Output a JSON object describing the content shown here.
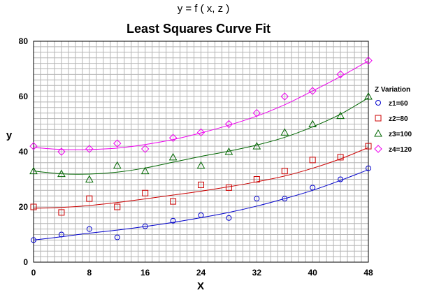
{
  "chart_data": {
    "type": "scatter",
    "suptitle": "y = f ( x, z )",
    "title": "Least Squares Curve Fit",
    "xlabel": "X",
    "ylabel": "y",
    "xlim": [
      0,
      48
    ],
    "ylim": [
      0,
      80
    ],
    "xticks": [
      0,
      8,
      16,
      24,
      32,
      40,
      48
    ],
    "yticks": [
      0,
      20,
      40,
      60,
      80
    ],
    "grid": true,
    "legend": {
      "title": "Z Variation",
      "placement": "right"
    },
    "series": [
      {
        "name": "z1=60",
        "color": "#0000cc",
        "marker": "circle",
        "x": [
          0,
          4,
          8,
          12,
          16,
          20,
          24,
          28,
          32,
          36,
          40,
          44,
          48
        ],
        "y": [
          8,
          10,
          12,
          9,
          13,
          15,
          17,
          16,
          23,
          23,
          27,
          30,
          34
        ],
        "fit": [
          8,
          9.2,
          10.5,
          11.6,
          12.9,
          14.4,
          16.1,
          18,
          20.3,
          23,
          26,
          29.6,
          33.5
        ]
      },
      {
        "name": "z2=80",
        "color": "#cc0000",
        "marker": "square",
        "x": [
          0,
          4,
          8,
          12,
          16,
          20,
          24,
          28,
          32,
          36,
          40,
          44,
          48
        ],
        "y": [
          20,
          18,
          23,
          20,
          25,
          22,
          28,
          27,
          30,
          33,
          37,
          38,
          42
        ],
        "fit": [
          19.5,
          19.8,
          20.5,
          21.6,
          22.9,
          24.3,
          25.7,
          27.3,
          29.1,
          31.2,
          34,
          37.4,
          41.5
        ]
      },
      {
        "name": "z3=100",
        "color": "#006600",
        "marker": "triangle",
        "x": [
          0,
          4,
          8,
          12,
          16,
          20,
          24,
          28,
          32,
          36,
          40,
          44,
          48
        ],
        "y": [
          33,
          32,
          30,
          35,
          33,
          38,
          35,
          40,
          42,
          47,
          50,
          53,
          60
        ],
        "fit": [
          33,
          32,
          31.9,
          32.6,
          34.1,
          36.2,
          38.3,
          40.2,
          42.4,
          45.2,
          49,
          53.6,
          59.5
        ]
      },
      {
        "name": "z4=120",
        "color": "#ee00ee",
        "marker": "diamond",
        "x": [
          0,
          4,
          8,
          12,
          16,
          20,
          24,
          28,
          32,
          36,
          40,
          44,
          48
        ],
        "y": [
          42,
          40,
          41,
          43,
          41,
          45,
          47,
          50,
          54,
          60,
          62,
          68,
          73
        ],
        "fit": [
          41.5,
          40.8,
          40.8,
          41.3,
          42.6,
          44.4,
          46.8,
          49.6,
          52.9,
          57,
          62,
          67.2,
          72.9
        ]
      }
    ]
  }
}
